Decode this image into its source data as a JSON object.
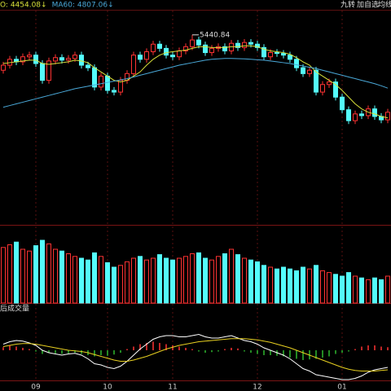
{
  "toolbar": [
    "九转",
    "加自选",
    "均线"
  ],
  "chart_data": [
    {
      "type": "candlestick",
      "up_color": "#ff3232",
      "down_color": "#54fcfc",
      "categories": [
        null,
        null,
        null,
        null,
        null,
        "09",
        null,
        null,
        null,
        null,
        null,
        null,
        null,
        null,
        null,
        null,
        "10",
        null,
        null,
        null,
        null,
        null,
        null,
        null,
        null,
        null,
        "11",
        null,
        null,
        null,
        null,
        null,
        null,
        null,
        null,
        null,
        null,
        null,
        null,
        "12",
        null,
        null,
        null,
        null,
        null,
        null,
        null,
        null,
        null,
        null,
        null,
        null,
        "01",
        null,
        null,
        null,
        null,
        null,
        null,
        null
      ],
      "open": [
        5020,
        5080,
        5150,
        5120,
        5180,
        5200,
        5100,
        4900,
        5130,
        5170,
        5140,
        5160,
        5200,
        5080,
        5050,
        4820,
        4950,
        4780,
        4760,
        4900,
        4980,
        5200,
        5150,
        5240,
        5330,
        5280,
        5200,
        5180,
        5250,
        5300,
        5380,
        5320,
        5230,
        5280,
        5300,
        5250,
        5340,
        5290,
        5350,
        5330,
        5290,
        5180,
        5230,
        5220,
        5200,
        5150,
        5050,
        4980,
        5020,
        4760,
        4850,
        4880,
        4700,
        4550,
        4420,
        4500,
        4480,
        4560,
        4470,
        4430
      ],
      "high": [
        5120,
        5190,
        5190,
        5220,
        5240,
        5240,
        5140,
        5170,
        5210,
        5210,
        5200,
        5240,
        5240,
        5120,
        5090,
        4990,
        4990,
        4820,
        4940,
        5020,
        5240,
        5240,
        5280,
        5370,
        5370,
        5320,
        5240,
        5290,
        5340,
        5440.84,
        5420,
        5360,
        5320,
        5340,
        5340,
        5380,
        5380,
        5390,
        5390,
        5370,
        5330,
        5270,
        5270,
        5260,
        5240,
        5190,
        5090,
        5060,
        5060,
        4890,
        4920,
        4920,
        4740,
        4590,
        4540,
        4540,
        4600,
        4600,
        4510,
        4560
      ],
      "low": [
        4980,
        5040,
        5080,
        5080,
        5140,
        5060,
        4860,
        4860,
        5090,
        5100,
        5100,
        5120,
        5040,
        5010,
        4780,
        4780,
        4740,
        4720,
        4720,
        4860,
        4940,
        5110,
        5110,
        5200,
        5240,
        5160,
        5140,
        5140,
        5210,
        5260,
        5280,
        5190,
        5190,
        5240,
        5210,
        5210,
        5250,
        5250,
        5290,
        5250,
        5140,
        5140,
        5180,
        5160,
        5110,
        5010,
        4940,
        4940,
        4720,
        4720,
        4810,
        4660,
        4510,
        4380,
        4380,
        4440,
        4440,
        4430,
        4390,
        4390
      ],
      "close": [
        5080,
        5150,
        5120,
        5180,
        5200,
        5100,
        4900,
        5130,
        5170,
        5140,
        5160,
        5200,
        5080,
        5050,
        4820,
        4950,
        4780,
        4760,
        4900,
        4980,
        5200,
        5150,
        5240,
        5330,
        5280,
        5200,
        5180,
        5250,
        5300,
        5380,
        5320,
        5230,
        5280,
        5300,
        5250,
        5340,
        5290,
        5350,
        5330,
        5290,
        5180,
        5230,
        5220,
        5200,
        5150,
        5050,
        4980,
        5020,
        4760,
        4850,
        4880,
        4700,
        4550,
        4420,
        4500,
        4480,
        4560,
        4470,
        4430,
        4520
      ],
      "series": [
        {
          "name": "O: 4454.08↓",
          "color": "#d8e03a",
          "values": [
            5100,
            5110,
            5120,
            5130,
            5140,
            5140,
            5100,
            5090,
            5100,
            5110,
            5120,
            5140,
            5130,
            5110,
            5050,
            5000,
            4950,
            4900,
            4880,
            4900,
            4950,
            5000,
            5080,
            5150,
            5200,
            5230,
            5240,
            5250,
            5260,
            5280,
            5300,
            5300,
            5290,
            5290,
            5290,
            5300,
            5300,
            5310,
            5310,
            5300,
            5270,
            5250,
            5240,
            5230,
            5210,
            5170,
            5120,
            5080,
            5000,
            4950,
            4900,
            4850,
            4780,
            4700,
            4620,
            4560,
            4520,
            4500,
            4470,
            4454.08
          ]
        },
        {
          "name": "MA60: 4807.06↓",
          "color": "#4aa8d8",
          "values": [
            4580,
            4600,
            4620,
            4640,
            4660,
            4680,
            4700,
            4720,
            4740,
            4760,
            4780,
            4800,
            4815,
            4830,
            4845,
            4860,
            4875,
            4890,
            4905,
            4920,
            4940,
            4960,
            4980,
            5000,
            5020,
            5040,
            5060,
            5080,
            5095,
            5110,
            5125,
            5140,
            5150,
            5155,
            5160,
            5160,
            5158,
            5155,
            5150,
            5145,
            5140,
            5130,
            5120,
            5110,
            5100,
            5085,
            5070,
            5055,
            5040,
            5020,
            5000,
            4980,
            4960,
            4940,
            4920,
            4900,
            4880,
            4860,
            4835,
            4807.06
          ]
        }
      ],
      "annotation": {
        "label": "5440.84",
        "value": 5440.84
      },
      "ylim": [
        3200,
        5720
      ]
    },
    {
      "type": "bar",
      "title": "后成交量",
      "values": [
        62,
        65,
        68,
        60,
        58,
        64,
        70,
        66,
        60,
        58,
        55,
        52,
        50,
        48,
        56,
        52,
        45,
        40,
        42,
        46,
        50,
        52,
        48,
        50,
        54,
        50,
        48,
        50,
        52,
        55,
        56,
        50,
        48,
        52,
        55,
        60,
        54,
        50,
        48,
        46,
        42,
        40,
        38,
        40,
        38,
        36,
        40,
        38,
        42,
        36,
        34,
        32,
        30,
        34,
        30,
        28,
        26,
        28,
        26,
        30
      ],
      "ylim": [
        0,
        80
      ]
    },
    {
      "type": "macd",
      "up_color": "#ff3232",
      "down_color": "#2fb82f",
      "values": [
        5,
        8,
        6,
        4,
        2,
        -2,
        -6,
        -4,
        -5,
        -6,
        -5,
        -4,
        -6,
        -8,
        -10,
        -8,
        -9,
        -7,
        -4,
        2,
        6,
        10,
        12,
        14,
        12,
        10,
        8,
        6,
        4,
        2,
        -2,
        -4,
        -3,
        -2,
        2,
        4,
        3,
        -2,
        -4,
        -6,
        -8,
        -8,
        -9,
        -10,
        -12,
        -14,
        -16,
        -15,
        -14,
        -12,
        -10,
        -6,
        -4,
        -2,
        2,
        6,
        8,
        8,
        6,
        5
      ],
      "series": [
        {
          "color": "#ffffff",
          "values": [
            10,
            14,
            16,
            15,
            12,
            8,
            0,
            -4,
            -6,
            -8,
            -6,
            -5,
            -8,
            -14,
            -22,
            -24,
            -28,
            -30,
            -26,
            -18,
            -8,
            2,
            10,
            18,
            22,
            24,
            24,
            22,
            22,
            24,
            26,
            22,
            20,
            20,
            22,
            24,
            20,
            16,
            14,
            10,
            4,
            0,
            -4,
            -8,
            -14,
            -22,
            -30,
            -34,
            -40,
            -42,
            -44,
            -46,
            -48,
            -48,
            -46,
            -42,
            -36,
            -32,
            -30,
            -28
          ]
        },
        {
          "color": "#e8d020",
          "values": [
            6,
            8,
            10,
            11,
            11,
            10,
            8,
            6,
            4,
            2,
            0,
            -1,
            -2,
            -4,
            -7,
            -10,
            -13,
            -16,
            -18,
            -18,
            -16,
            -13,
            -10,
            -6,
            -2,
            2,
            5,
            8,
            10,
            12,
            14,
            15,
            16,
            17,
            18,
            19,
            19,
            19,
            18,
            17,
            15,
            13,
            10,
            7,
            4,
            0,
            -4,
            -8,
            -12,
            -16,
            -20,
            -24,
            -28,
            -31,
            -33,
            -34,
            -34,
            -34,
            -33,
            -32
          ]
        }
      ],
      "ylim": [
        -60,
        60
      ]
    }
  ]
}
